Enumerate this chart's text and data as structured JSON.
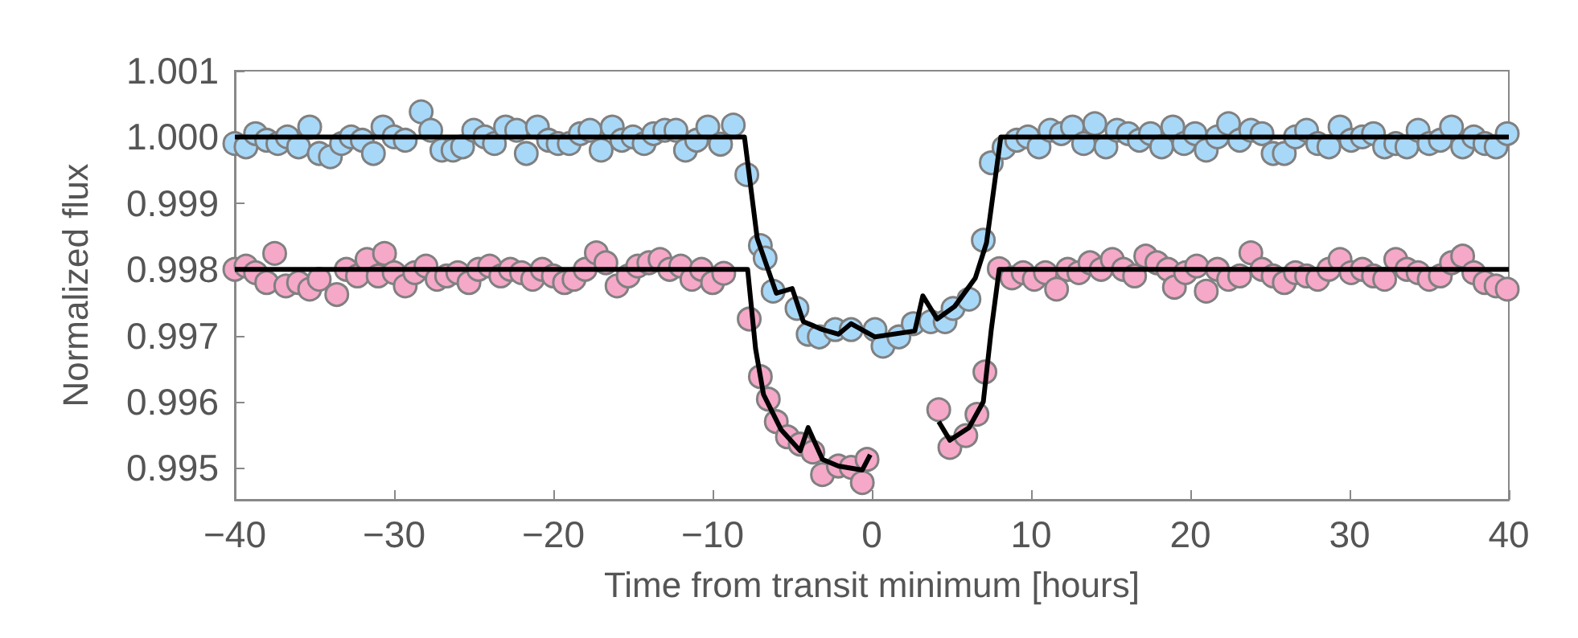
{
  "chart_data": {
    "type": "scatter",
    "xlabel": "Time from transit minimum [hours]",
    "ylabel": "Normalized flux",
    "xlim": [
      -40,
      40
    ],
    "ylim": [
      0.99452,
      1.001
    ],
    "xticks": [
      {
        "value": -40,
        "label": "−40"
      },
      {
        "value": -30,
        "label": "−30"
      },
      {
        "value": -20,
        "label": "−20"
      },
      {
        "value": -10,
        "label": "−10"
      },
      0,
      10,
      20,
      30,
      40
    ],
    "yticks": [
      {
        "value": 0.995,
        "label": "0.995"
      },
      {
        "value": 0.996,
        "label": "0.996"
      },
      {
        "value": 0.997,
        "label": "0.997"
      },
      {
        "value": 0.998,
        "label": "0.998"
      },
      {
        "value": 0.999,
        "label": "0.999"
      },
      {
        "value": 1,
        "label": "1.000"
      },
      {
        "value": 1.001,
        "label": "1.001"
      }
    ],
    "grid": false,
    "series": [
      {
        "marker": "circle",
        "color": "#a8d8f8",
        "x": [
          -40,
          -39.3,
          -38.7,
          -38,
          -37.3,
          -36.7,
          -36,
          -35.3,
          -34.7,
          -34,
          -33.3,
          -32.7,
          -32,
          -31.3,
          -30.7,
          -30,
          -29.3,
          -28.3,
          -27.7,
          -27,
          -26.3,
          -25.7,
          -25,
          -24.3,
          -23.7,
          -23,
          -22.3,
          -21.7,
          -21,
          -20.3,
          -19.7,
          -19,
          -18.3,
          -17.7,
          -17,
          -16.3,
          -15.7,
          -15,
          -14.3,
          -13.7,
          -13,
          -12.3,
          -11.7,
          -11,
          -10.3,
          -9.5,
          -8.7,
          -7.85,
          -7,
          -6.7,
          -6.2,
          -4.7,
          -4,
          -3.3,
          -2.3,
          -1.3,
          0.2,
          0.7,
          1.7,
          2.6,
          3.7,
          4.6,
          5.1,
          6.1,
          7,
          7.5,
          8.3,
          9.1,
          9.8,
          10.5,
          11.2,
          11.9,
          12.6,
          13.3,
          14,
          14.7,
          15.4,
          16.1,
          16.8,
          17.5,
          18.2,
          18.9,
          19.6,
          20.3,
          21,
          21.7,
          22.4,
          23.1,
          23.8,
          24.5,
          25.2,
          25.9,
          26.6,
          27.3,
          28,
          28.7,
          29.4,
          30.1,
          30.8,
          31.5,
          32.2,
          32.9,
          33.6,
          34.3,
          35,
          35.7,
          36.4,
          37.1,
          37.8,
          38.5,
          39.2,
          39.9
        ],
        "values": [
          0.9999,
          0.99985,
          1.00005,
          0.99995,
          0.9999,
          1,
          0.99985,
          1.00015,
          0.99975,
          0.9997,
          0.9999,
          1,
          0.99995,
          0.99975,
          1.00015,
          1,
          0.99995,
          1.00038,
          1.0001,
          0.9998,
          0.9998,
          0.99985,
          1.0001,
          1,
          0.9999,
          1.00015,
          1.0001,
          0.99975,
          1.00015,
          0.99995,
          0.9999,
          0.9999,
          1.00005,
          1.0001,
          0.9998,
          1.00015,
          0.99995,
          1,
          0.9999,
          1.00005,
          1.0001,
          1.0001,
          0.9998,
          0.99995,
          1.00015,
          0.99989,
          1.00018,
          0.99943,
          0.99836,
          0.99817,
          0.99767,
          0.99741,
          0.99702,
          0.99698,
          0.99709,
          0.99709,
          0.99709,
          0.99684,
          0.99698,
          0.99718,
          0.99721,
          0.99721,
          0.99741,
          0.99755,
          0.99844,
          0.99961,
          0.99984,
          0.99995,
          1,
          0.99985,
          1.0001,
          1.00005,
          1.00015,
          0.9999,
          1.0002,
          0.99985,
          1.0001,
          1.00005,
          0.99995,
          1.00005,
          0.99985,
          1.00015,
          0.9999,
          1.00005,
          0.9998,
          1,
          1.0002,
          0.99995,
          1.0001,
          1.00005,
          0.99975,
          0.99975,
          1,
          1.0001,
          0.9999,
          0.99985,
          1.00015,
          0.99995,
          1,
          1.00005,
          0.99985,
          0.9999,
          0.99985,
          1.0001,
          0.9999,
          0.99995,
          1.00015,
          0.99985,
          1,
          0.9999,
          0.99985,
          1.00005
        ]
      },
      {
        "marker": "circle",
        "color": "#f5a8c8",
        "x": [
          -40,
          -39.3,
          -38.7,
          -38,
          -37.5,
          -36.8,
          -36,
          -35.3,
          -34.7,
          -33.6,
          -33,
          -32.3,
          -31.7,
          -31,
          -30.6,
          -30,
          -29.3,
          -28.7,
          -28,
          -27.3,
          -26.7,
          -26,
          -25.3,
          -24.7,
          -24,
          -23.3,
          -22.7,
          -22,
          -21.3,
          -20.7,
          -20,
          -19.3,
          -18.7,
          -18,
          -17.3,
          -16.7,
          -16,
          -15.3,
          -14.7,
          -14,
          -13.3,
          -12.7,
          -12,
          -11.3,
          -10.7,
          -10,
          -9.3,
          -7.7,
          -7,
          -6.5,
          -6,
          -5.3,
          -4.5,
          -3.7,
          -3.1,
          -2.1,
          -1.3,
          -0.6,
          -0.3,
          4.2,
          4.9,
          5.9,
          6.6,
          7.1,
          8,
          8.8,
          9.5,
          10.2,
          10.9,
          11.6,
          12.3,
          13,
          13.7,
          14.4,
          15.1,
          15.8,
          16.5,
          17.2,
          17.9,
          18.6,
          19,
          19.7,
          20.4,
          21,
          21.7,
          22.4,
          23.1,
          23.8,
          24.5,
          25.2,
          25.9,
          26.6,
          27.3,
          28,
          28.7,
          29.4,
          30.1,
          30.8,
          31.5,
          32.2,
          32.9,
          33.6,
          34.3,
          35,
          35.7,
          36.4,
          37.1,
          37.8,
          38.5,
          39.2,
          39.9
        ],
        "values": [
          0.998,
          0.99805,
          0.99795,
          0.9978,
          0.99824,
          0.99775,
          0.9978,
          0.9977,
          0.99785,
          0.99762,
          0.998,
          0.9979,
          0.99815,
          0.9979,
          0.99824,
          0.99795,
          0.99775,
          0.99795,
          0.99805,
          0.99785,
          0.9979,
          0.99795,
          0.9978,
          0.998,
          0.99805,
          0.9979,
          0.998,
          0.99795,
          0.99785,
          0.998,
          0.9979,
          0.9978,
          0.99785,
          0.998,
          0.99825,
          0.9981,
          0.99775,
          0.9979,
          0.99805,
          0.9981,
          0.99815,
          0.998,
          0.99805,
          0.99785,
          0.998,
          0.9978,
          0.99794,
          0.99725,
          0.99638,
          0.99604,
          0.9957,
          0.99547,
          0.99536,
          0.99524,
          0.9949,
          0.99503,
          0.99501,
          0.99478,
          0.99513,
          0.99588,
          0.99531,
          0.99549,
          0.99581,
          0.99645,
          0.99801,
          0.99787,
          0.99795,
          0.99785,
          0.99795,
          0.9977,
          0.998,
          0.99795,
          0.9981,
          0.998,
          0.99815,
          0.998,
          0.9979,
          0.9982,
          0.9981,
          0.998,
          0.99773,
          0.99795,
          0.99805,
          0.99767,
          0.998,
          0.99785,
          0.9979,
          0.99825,
          0.998,
          0.9979,
          0.9978,
          0.99795,
          0.9979,
          0.99785,
          0.998,
          0.99815,
          0.99795,
          0.998,
          0.9979,
          0.99785,
          0.99815,
          0.998,
          0.99795,
          0.99785,
          0.9979,
          0.9981,
          0.9982,
          0.99795,
          0.9978,
          0.99775,
          0.9977
        ]
      },
      {
        "type": "line",
        "marker": "none",
        "color": "#000000",
        "x": [
          -40,
          -8,
          -7.2,
          -6,
          -5,
          -4.3,
          -3.1,
          -2.1,
          -1.3,
          0.2,
          2.7,
          3.2,
          4.1,
          5.2,
          6.5,
          7.2,
          8.1,
          40
        ],
        "values": [
          1,
          1,
          0.99847,
          0.99764,
          0.99771,
          0.99721,
          0.99709,
          0.99702,
          0.99718,
          0.99698,
          0.99707,
          0.9976,
          0.99725,
          0.99744,
          0.99787,
          0.9984,
          1,
          1
        ]
      },
      {
        "type": "line",
        "marker": "none",
        "color": "#000000",
        "x": [
          -40,
          -7.8,
          -7.3,
          -6.8,
          -5.7,
          -4.5,
          -4,
          -3.1,
          -2.1,
          -0.6,
          -0.1,
          2,
          4.2,
          4.9,
          6.1,
          7,
          7.5,
          8,
          40
        ],
        "values": [
          0.998,
          0.998,
          0.9968,
          0.99611,
          0.99558,
          0.99526,
          0.99561,
          0.99513,
          0.99503,
          0.99497,
          0.9952,
          null,
          0.9957,
          0.99542,
          0.99561,
          0.996,
          0.99709,
          0.998,
          0.998
        ]
      }
    ]
  }
}
